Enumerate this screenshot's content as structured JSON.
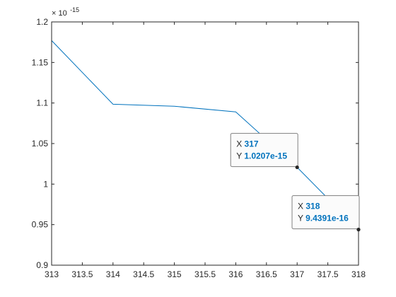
{
  "chart_data": {
    "type": "line",
    "title": "",
    "xlabel": "",
    "ylabel": "",
    "xlim": [
      313,
      318
    ],
    "ylim": [
      0.9,
      1.2
    ],
    "y_exponent_label": "× 10",
    "y_exponent": "-15",
    "x_ticks": [
      "313",
      "313.5",
      "314",
      "314.5",
      "315",
      "315.5",
      "316",
      "316.5",
      "317",
      "317.5",
      "318"
    ],
    "y_ticks": [
      "0.9",
      "0.95",
      "1",
      "1.05",
      "1.1",
      "1.15",
      "1.2"
    ],
    "grid": false,
    "series": [
      {
        "x": [
          313,
          314,
          315,
          316,
          317,
          318
        ],
        "y": [
          1.177,
          1.0985,
          1.096,
          1.089,
          1.0207,
          0.94391
        ]
      }
    ],
    "datatips": [
      {
        "x_key": "X",
        "x_value": "317",
        "y_key": "Y",
        "y_value": "1.0207e-15",
        "point_x": 317,
        "point_y": 1.0207
      },
      {
        "x_key": "X",
        "x_value": "318",
        "y_key": "Y",
        "y_value": "9.4391e-16",
        "point_x": 318,
        "point_y": 0.94391
      }
    ],
    "colors": {
      "line": "#0072bd",
      "axis": "#262626",
      "tip_value": "#0072bd",
      "tip_border": "#7f7f7f",
      "tip_bg": "#fbfbfb",
      "marker": "#262626"
    }
  }
}
